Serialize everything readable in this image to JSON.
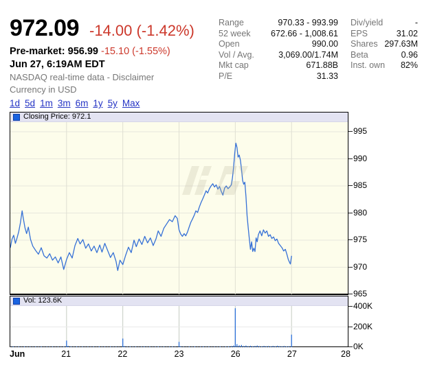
{
  "quote": {
    "price": "972.09",
    "change": "-14.00 (-1.42%)",
    "premarket_label": "Pre-market:",
    "premarket_price": "956.99",
    "premarket_change": "-15.10 (-1.55%)",
    "timestamp": "Jun 27, 6:19AM EDT",
    "source_prefix": "NASDAQ real-time data - ",
    "disclaimer_link": "Disclaimer",
    "currency_line": "Currency in USD"
  },
  "stats": {
    "left": [
      {
        "label": "Range",
        "value": "970.33 - 993.99"
      },
      {
        "label": "52 week",
        "value": "672.66 - 1,008.61"
      },
      {
        "label": "Open",
        "value": "990.00"
      },
      {
        "label": "Vol / Avg.",
        "value": "3,069.00/1.74M"
      },
      {
        "label": "Mkt cap",
        "value": "671.88B"
      },
      {
        "label": "P/E",
        "value": "31.33"
      }
    ],
    "right": [
      {
        "label": "Div/yield",
        "value": "-"
      },
      {
        "label": "EPS",
        "value": "31.02"
      },
      {
        "label": "Shares",
        "value": "297.63M"
      },
      {
        "label": "Beta",
        "value": "0.96"
      },
      {
        "label": "Inst. own",
        "value": "82%"
      }
    ]
  },
  "range_links": [
    "1d",
    "5d",
    "1m",
    "3m",
    "6m",
    "1y",
    "5y",
    "Max"
  ],
  "price_legend": "Closing Price: 972.1",
  "volume_legend": "Vol: 123.6K",
  "colors": {
    "line": "#3570d6",
    "volume_bar": "#2a6fd8",
    "negative": "#cc382b",
    "link": "#2433c4",
    "chart_bg": "#fdfdeb",
    "legend_bg": "#e3e3f2",
    "grid_h": "#e7e7dc",
    "grid_v": "#dfdfd2",
    "volume_grid_v": "#c5ccc2",
    "volume_grid_h": "#e9e9e9"
  },
  "chart_data": [
    {
      "type": "line",
      "name": "Closing Price",
      "last_value": 972.1,
      "x_axis": {
        "labels": [
          "Jun",
          "21",
          "22",
          "23",
          "26",
          "27",
          "28"
        ],
        "positions": [
          0,
          1,
          2,
          3,
          4,
          5,
          6
        ]
      },
      "y_axis": {
        "ticks": [
          995,
          990,
          985,
          980,
          975,
          970,
          965
        ],
        "range": [
          965,
          995
        ]
      },
      "x": [
        0,
        0.03,
        0.06,
        0.09,
        0.12,
        0.15,
        0.18,
        0.21,
        0.23,
        0.26,
        0.29,
        0.32,
        0.36,
        0.4,
        0.45,
        0.5,
        0.55,
        0.6,
        0.65,
        0.7,
        0.75,
        0.8,
        0.85,
        0.9,
        0.95,
        1.0,
        1.05,
        1.1,
        1.15,
        1.2,
        1.24,
        1.29,
        1.34,
        1.39,
        1.44,
        1.49,
        1.54,
        1.59,
        1.63,
        1.68,
        1.73,
        1.78,
        1.83,
        1.88,
        1.91,
        1.95,
        2.0,
        2.05,
        2.1,
        2.15,
        2.2,
        2.24,
        2.29,
        2.34,
        2.39,
        2.44,
        2.49,
        2.54,
        2.59,
        2.63,
        2.68,
        2.73,
        2.78,
        2.83,
        2.88,
        2.93,
        2.97,
        3.0,
        3.03,
        3.06,
        3.09,
        3.12,
        3.15,
        3.18,
        3.21,
        3.24,
        3.27,
        3.3,
        3.33,
        3.36,
        3.39,
        3.42,
        3.45,
        3.48,
        3.51,
        3.54,
        3.57,
        3.6,
        3.63,
        3.66,
        3.69,
        3.72,
        3.75,
        3.78,
        3.81,
        3.84,
        3.87,
        3.9,
        3.93,
        3.95,
        3.97,
        3.99,
        4.01,
        4.03,
        4.05,
        4.07,
        4.09,
        4.11,
        4.13,
        4.15,
        4.17,
        4.19,
        4.21,
        4.23,
        4.25,
        4.27,
        4.29,
        4.31,
        4.33,
        4.35,
        4.37,
        4.39,
        4.41,
        4.44,
        4.47,
        4.5,
        4.53,
        4.56,
        4.59,
        4.62,
        4.65,
        4.68,
        4.71,
        4.74,
        4.77,
        4.8,
        4.83,
        4.86,
        4.89,
        4.92,
        4.94,
        4.96,
        4.98,
        5.0
      ],
      "y": [
        973.6,
        975.2,
        975.9,
        974.4,
        975.4,
        976.6,
        978.2,
        980.4,
        979.1,
        977.3,
        976.2,
        977.4,
        975.1,
        973.9,
        973.1,
        972.4,
        973.6,
        972.1,
        971.7,
        972.5,
        971.3,
        971.9,
        970.8,
        971.9,
        969.6,
        971.4,
        972.7,
        971.7,
        974.0,
        975.3,
        974.3,
        975.1,
        973.5,
        974.3,
        973.0,
        973.9,
        972.7,
        974.1,
        972.8,
        974.4,
        973.1,
        971.8,
        972.7,
        971.1,
        969.4,
        971.3,
        970.5,
        972.2,
        973.7,
        972.7,
        975.0,
        973.8,
        975.2,
        974.2,
        975.7,
        974.5,
        975.4,
        974.0,
        975.2,
        976.7,
        975.7,
        977.2,
        978.0,
        978.8,
        978.4,
        979.5,
        979.0,
        976.9,
        976.1,
        975.7,
        976.2,
        975.8,
        976.5,
        977.4,
        978.3,
        978.9,
        979.6,
        980.4,
        980.1,
        981.1,
        981.9,
        982.6,
        983.3,
        984.1,
        983.7,
        984.5,
        985.0,
        985.4,
        984.8,
        985.2,
        984.4,
        984.9,
        984.0,
        983.3,
        984.6,
        985.0,
        984.5,
        984.8,
        985.2,
        986.5,
        988.5,
        991.0,
        992.9,
        992.1,
        990.3,
        990.7,
        989.8,
        988.2,
        986.0,
        985.3,
        985.7,
        983.0,
        979.5,
        977.2,
        975.2,
        973.3,
        974.7,
        972.9,
        973.5,
        972.9,
        975.4,
        974.7,
        976.0,
        976.7,
        975.8,
        976.9,
        976.3,
        976.7,
        975.7,
        976.0,
        975.3,
        975.6,
        974.9,
        975.2,
        974.4,
        974.0,
        973.6,
        973.0,
        973.3,
        972.3,
        971.5,
        971.0,
        970.6,
        972.1
      ]
    },
    {
      "type": "bar",
      "name": "Vol",
      "last_value_label": "123.6K",
      "y_axis": {
        "ticks": [
          "400K",
          "200K",
          "0K"
        ],
        "range_k": [
          0,
          400
        ]
      },
      "points": [
        [
          0,
          5
        ],
        [
          0.05,
          8
        ],
        [
          0.1,
          4
        ],
        [
          0.15,
          6
        ],
        [
          0.2,
          3
        ],
        [
          0.25,
          7
        ],
        [
          0.3,
          4
        ],
        [
          0.35,
          5
        ],
        [
          0.4,
          3
        ],
        [
          0.45,
          6
        ],
        [
          0.5,
          4
        ],
        [
          0.55,
          7
        ],
        [
          0.6,
          3
        ],
        [
          0.65,
          5
        ],
        [
          0.7,
          4
        ],
        [
          0.75,
          6
        ],
        [
          0.8,
          3
        ],
        [
          0.85,
          5
        ],
        [
          0.9,
          4
        ],
        [
          0.95,
          7
        ],
        [
          1,
          65
        ],
        [
          1.03,
          13
        ],
        [
          1.08,
          6
        ],
        [
          1.13,
          4
        ],
        [
          1.18,
          7
        ],
        [
          1.23,
          4
        ],
        [
          1.28,
          6
        ],
        [
          1.33,
          3
        ],
        [
          1.38,
          5
        ],
        [
          1.43,
          4
        ],
        [
          1.48,
          6
        ],
        [
          1.53,
          3
        ],
        [
          1.58,
          7
        ],
        [
          1.63,
          4
        ],
        [
          1.68,
          5
        ],
        [
          1.73,
          3
        ],
        [
          1.78,
          6
        ],
        [
          1.83,
          4
        ],
        [
          1.88,
          5
        ],
        [
          1.93,
          3
        ],
        [
          2,
          85
        ],
        [
          2.03,
          11
        ],
        [
          2.08,
          5
        ],
        [
          2.13,
          7
        ],
        [
          2.18,
          4
        ],
        [
          2.23,
          6
        ],
        [
          2.28,
          3
        ],
        [
          2.33,
          5
        ],
        [
          2.38,
          8
        ],
        [
          2.43,
          4
        ],
        [
          2.48,
          6
        ],
        [
          2.53,
          3
        ],
        [
          2.58,
          5
        ],
        [
          2.63,
          7
        ],
        [
          2.68,
          4
        ],
        [
          2.73,
          6
        ],
        [
          2.78,
          3
        ],
        [
          2.83,
          5
        ],
        [
          2.88,
          7
        ],
        [
          2.93,
          4
        ],
        [
          3,
          52
        ],
        [
          3.03,
          9
        ],
        [
          3.08,
          5
        ],
        [
          3.13,
          3
        ],
        [
          3.18,
          6
        ],
        [
          3.23,
          4
        ],
        [
          3.28,
          7
        ],
        [
          3.33,
          3
        ],
        [
          3.38,
          5
        ],
        [
          3.43,
          8
        ],
        [
          3.48,
          4
        ],
        [
          3.53,
          6
        ],
        [
          3.58,
          3
        ],
        [
          3.63,
          5
        ],
        [
          3.68,
          4
        ],
        [
          3.73,
          7
        ],
        [
          3.78,
          3
        ],
        [
          3.83,
          6
        ],
        [
          3.88,
          8
        ],
        [
          3.93,
          11
        ],
        [
          3.97,
          16
        ],
        [
          4,
          385
        ],
        [
          4.03,
          30
        ],
        [
          4.07,
          18
        ],
        [
          4.11,
          22
        ],
        [
          4.15,
          12
        ],
        [
          4.19,
          16
        ],
        [
          4.23,
          10
        ],
        [
          4.27,
          14
        ],
        [
          4.31,
          9
        ],
        [
          4.35,
          12
        ],
        [
          4.39,
          16
        ],
        [
          4.43,
          10
        ],
        [
          4.47,
          8
        ],
        [
          4.51,
          12
        ],
        [
          4.55,
          9
        ],
        [
          4.59,
          11
        ],
        [
          4.63,
          8
        ],
        [
          4.67,
          12
        ],
        [
          4.71,
          9
        ],
        [
          4.75,
          14
        ],
        [
          4.79,
          10
        ],
        [
          4.83,
          8
        ],
        [
          4.87,
          11
        ],
        [
          4.91,
          7
        ],
        [
          4.95,
          9
        ],
        [
          5,
          124
        ]
      ]
    }
  ]
}
